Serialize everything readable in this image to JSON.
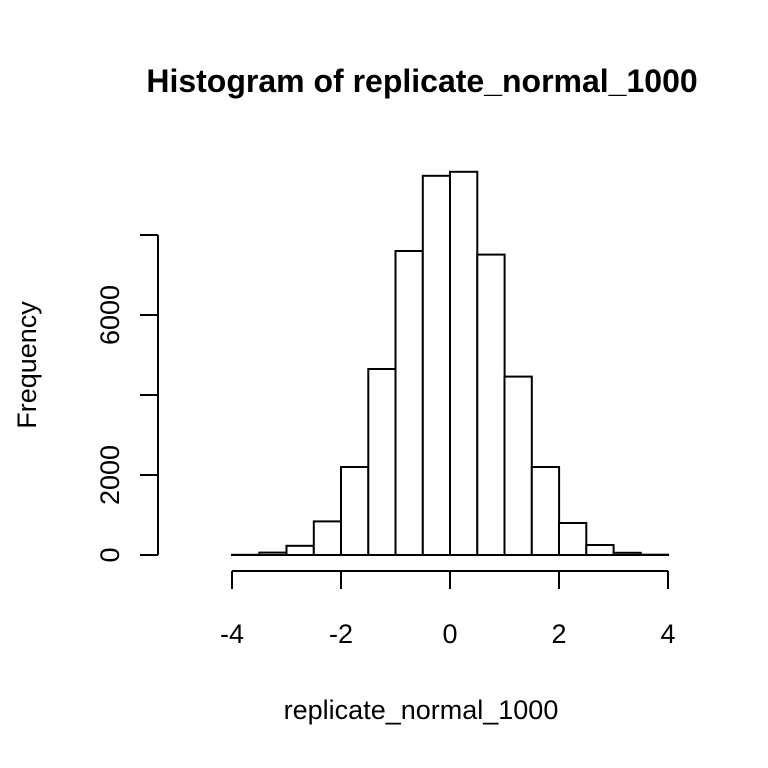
{
  "chart_data": {
    "type": "bar",
    "title": "Histogram of replicate_normal_1000",
    "xlabel": "replicate_normal_1000",
    "ylabel": "Frequency",
    "bin_width": 0.5,
    "bins": [
      {
        "x0": -5.0,
        "x1": -4.5,
        "count": 0
      },
      {
        "x0": -4.5,
        "x1": -4.0,
        "count": 1
      },
      {
        "x0": -4.0,
        "x1": -3.5,
        "count": 5
      },
      {
        "x0": -3.5,
        "x1": -3.0,
        "count": 60
      },
      {
        "x0": -3.0,
        "x1": -2.5,
        "count": 230
      },
      {
        "x0": -2.5,
        "x1": -2.0,
        "count": 840
      },
      {
        "x0": -2.0,
        "x1": -1.5,
        "count": 2200
      },
      {
        "x0": -1.5,
        "x1": -1.0,
        "count": 4650
      },
      {
        "x0": -1.0,
        "x1": -0.5,
        "count": 7600
      },
      {
        "x0": -0.5,
        "x1": 0.0,
        "count": 9480
      },
      {
        "x0": 0.0,
        "x1": 0.5,
        "count": 9580
      },
      {
        "x0": 0.5,
        "x1": 1.0,
        "count": 7510
      },
      {
        "x0": 1.0,
        "x1": 1.5,
        "count": 4460
      },
      {
        "x0": 1.5,
        "x1": 2.0,
        "count": 2200
      },
      {
        "x0": 2.0,
        "x1": 2.5,
        "count": 800
      },
      {
        "x0": 2.5,
        "x1": 3.0,
        "count": 250
      },
      {
        "x0": 3.0,
        "x1": 3.5,
        "count": 55
      },
      {
        "x0": 3.5,
        "x1": 4.0,
        "count": 8
      }
    ],
    "xlim": [
      -5,
      4
    ],
    "ylim": [
      0,
      10000
    ],
    "x_ticks": [
      -4,
      -2,
      0,
      2,
      4
    ],
    "x_tick_labels": [
      "-4",
      "-2",
      "0",
      "2",
      "4"
    ],
    "y_ticks": [
      0,
      2000,
      4000,
      6000,
      8000
    ],
    "y_tick_labels": [
      "0",
      "2000",
      "",
      "6000",
      ""
    ],
    "grid": false,
    "colors": {
      "bar_fill": "#ffffff",
      "bar_stroke": "#000000",
      "text": "#000000"
    }
  }
}
